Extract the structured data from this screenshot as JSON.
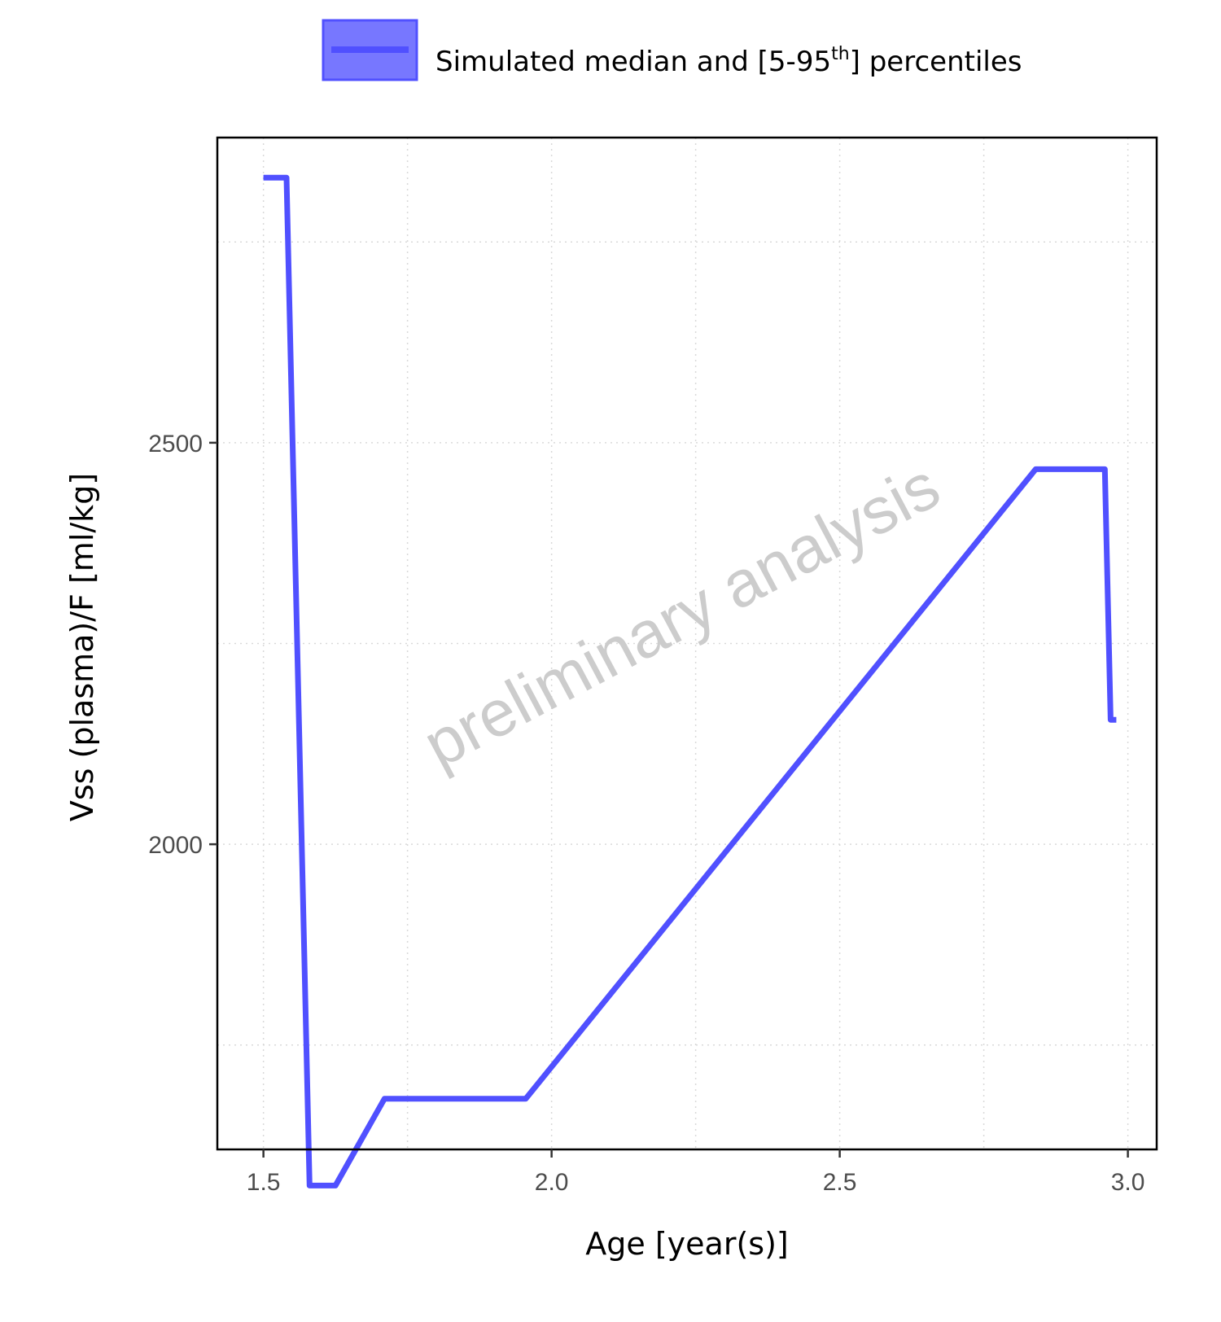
{
  "legend": {
    "text_before": "Simulated median and [5-95",
    "superscript": "th",
    "text_after": "] percentiles"
  },
  "watermark": "preliminary analysis",
  "colors": {
    "series": "#5050ff",
    "legend_fill": "#7777ff",
    "grid": "#d9d9d9",
    "watermark": "#cccccc"
  },
  "chart_data": {
    "type": "line",
    "title": "",
    "xlabel": "Age [year(s)]",
    "ylabel": "Vss (plasma)/F [ml/kg]",
    "xlim": [
      1.42,
      3.05
    ],
    "ylim": [
      1620,
      2880
    ],
    "xticks": [
      1.5,
      2.0,
      2.5,
      3.0
    ],
    "xtick_labels": [
      "1.5",
      "2.0",
      "2.5",
      "3.0"
    ],
    "yticks": [
      2000,
      2500
    ],
    "ytick_labels": [
      "2000",
      "2500"
    ],
    "grid": true,
    "legend_position": "top",
    "series": [
      {
        "name": "Simulated median and [5-95th] percentiles",
        "x": [
          1.5,
          1.54,
          1.58,
          1.625,
          1.71,
          1.955,
          2.84,
          2.96,
          2.97,
          2.98
        ],
        "y": [
          2830,
          2830,
          1575,
          1575,
          1683,
          1683,
          2467,
          2467,
          2155,
          2155
        ]
      }
    ]
  }
}
